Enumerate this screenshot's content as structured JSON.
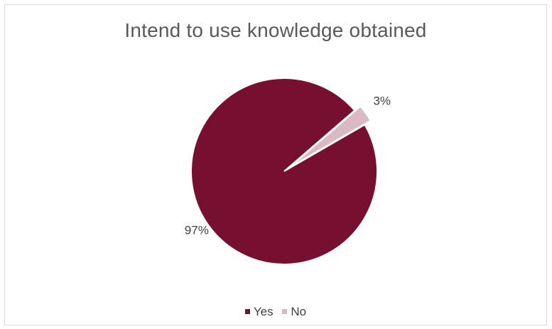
{
  "chart_data": {
    "type": "pie",
    "title": "Intend to use knowledge obtained",
    "slices": [
      {
        "label": "Yes",
        "value": 97,
        "data_label": "97%",
        "color": "#771030"
      },
      {
        "label": "No",
        "value": 3,
        "data_label": "3%",
        "color": "#d9b9c3"
      }
    ],
    "legend": {
      "position": "bottom",
      "entries": [
        "Yes",
        "No"
      ]
    },
    "start_angle_degrees": 60,
    "exploded_slice": "No",
    "slice_border_color": "#ffffff"
  }
}
